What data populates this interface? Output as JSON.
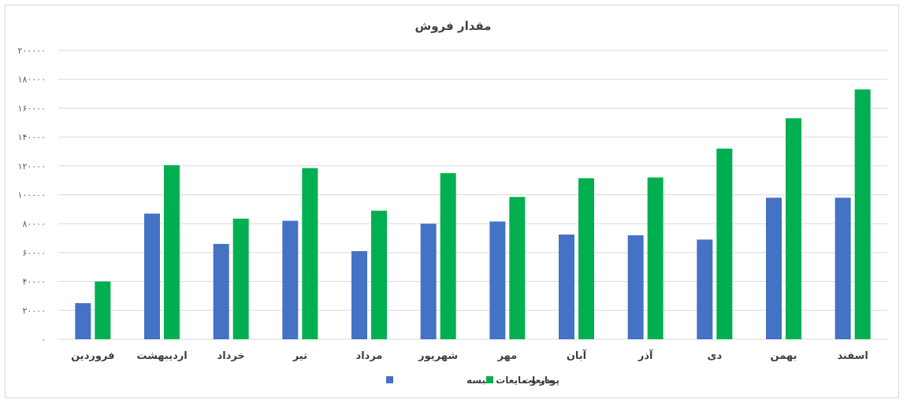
{
  "chart_data": {
    "type": "bar",
    "title": "مقدار فروش",
    "categories": [
      "فروردین",
      "اردیبهشت",
      "خرداد",
      "تیر",
      "مرداد",
      "شهریور",
      "مهر",
      "آبان",
      "آذر",
      "دی",
      "بهمن",
      "اسفند"
    ],
    "series": [
      {
        "name": "پودر و مایعات البسه",
        "color": "#4472c4",
        "values": [
          25000,
          87000,
          66000,
          82000,
          61000,
          80000,
          81500,
          72500,
          72000,
          69000,
          98000,
          98000
        ]
      },
      {
        "name": "مایعات",
        "color": "#00b050",
        "values": [
          40000,
          120500,
          83500,
          118500,
          89000,
          115000,
          98500,
          111500,
          112000,
          132000,
          153000,
          173000
        ]
      }
    ],
    "yticks": [
      "۰",
      "۲۰۰۰۰",
      "۴۰۰۰۰",
      "۶۰۰۰۰",
      "۸۰۰۰۰",
      "۱۰۰۰۰۰",
      "۱۲۰۰۰۰",
      "۱۴۰۰۰۰",
      "۱۶۰۰۰۰",
      "۱۸۰۰۰۰",
      "۲۰۰۰۰۰"
    ],
    "ylim": [
      0,
      200000
    ],
    "grid": true,
    "legend": "bottom",
    "xlabel": "",
    "ylabel": ""
  }
}
